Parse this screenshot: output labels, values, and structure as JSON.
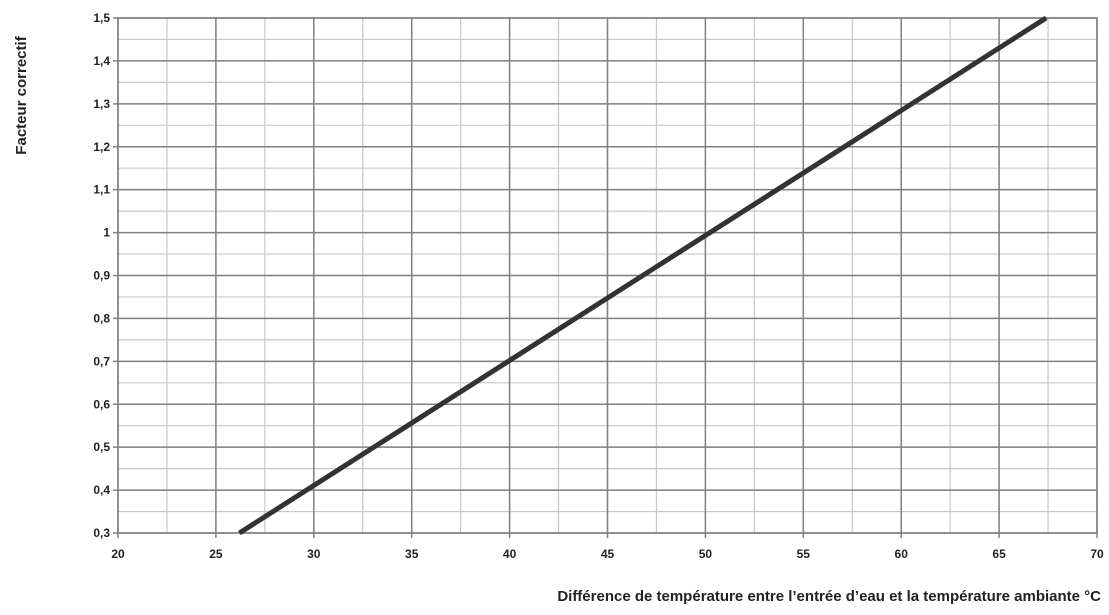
{
  "chart_data": {
    "type": "line",
    "title": "",
    "xlabel": "Différence de température entre l’entrée d’eau et la température ambiante °C",
    "ylabel": "Facteur correctif",
    "xlim": [
      20,
      70
    ],
    "ylim": [
      0.3,
      1.5
    ],
    "x_ticks": [
      20,
      25,
      30,
      35,
      40,
      45,
      50,
      55,
      60,
      65,
      70
    ],
    "x_tick_labels": [
      "20",
      "25",
      "30",
      "35",
      "40",
      "45",
      "50",
      "55",
      "60",
      "65",
      "70"
    ],
    "y_ticks": [
      0.3,
      0.4,
      0.5,
      0.6,
      0.7,
      0.8,
      0.9,
      1.0,
      1.1,
      1.2,
      1.3,
      1.4,
      1.5
    ],
    "y_tick_labels": [
      "0,3",
      "0,4",
      "0,5",
      "0,6",
      "0,7",
      "0,8",
      "0,9",
      "1",
      "1,1",
      "1,2",
      "1,3",
      "1,4",
      "1,5"
    ],
    "grid": true,
    "x_minor_step": 2.5,
    "y_minor_step": 0.05,
    "series": [
      {
        "x": [
          26.2,
          67.4
        ],
        "y": [
          0.3,
          1.5
        ]
      }
    ],
    "colors": {
      "line": "#333333",
      "major_grid": "#808080",
      "minor_grid": "#c8c8c8",
      "text": "#222222"
    }
  }
}
